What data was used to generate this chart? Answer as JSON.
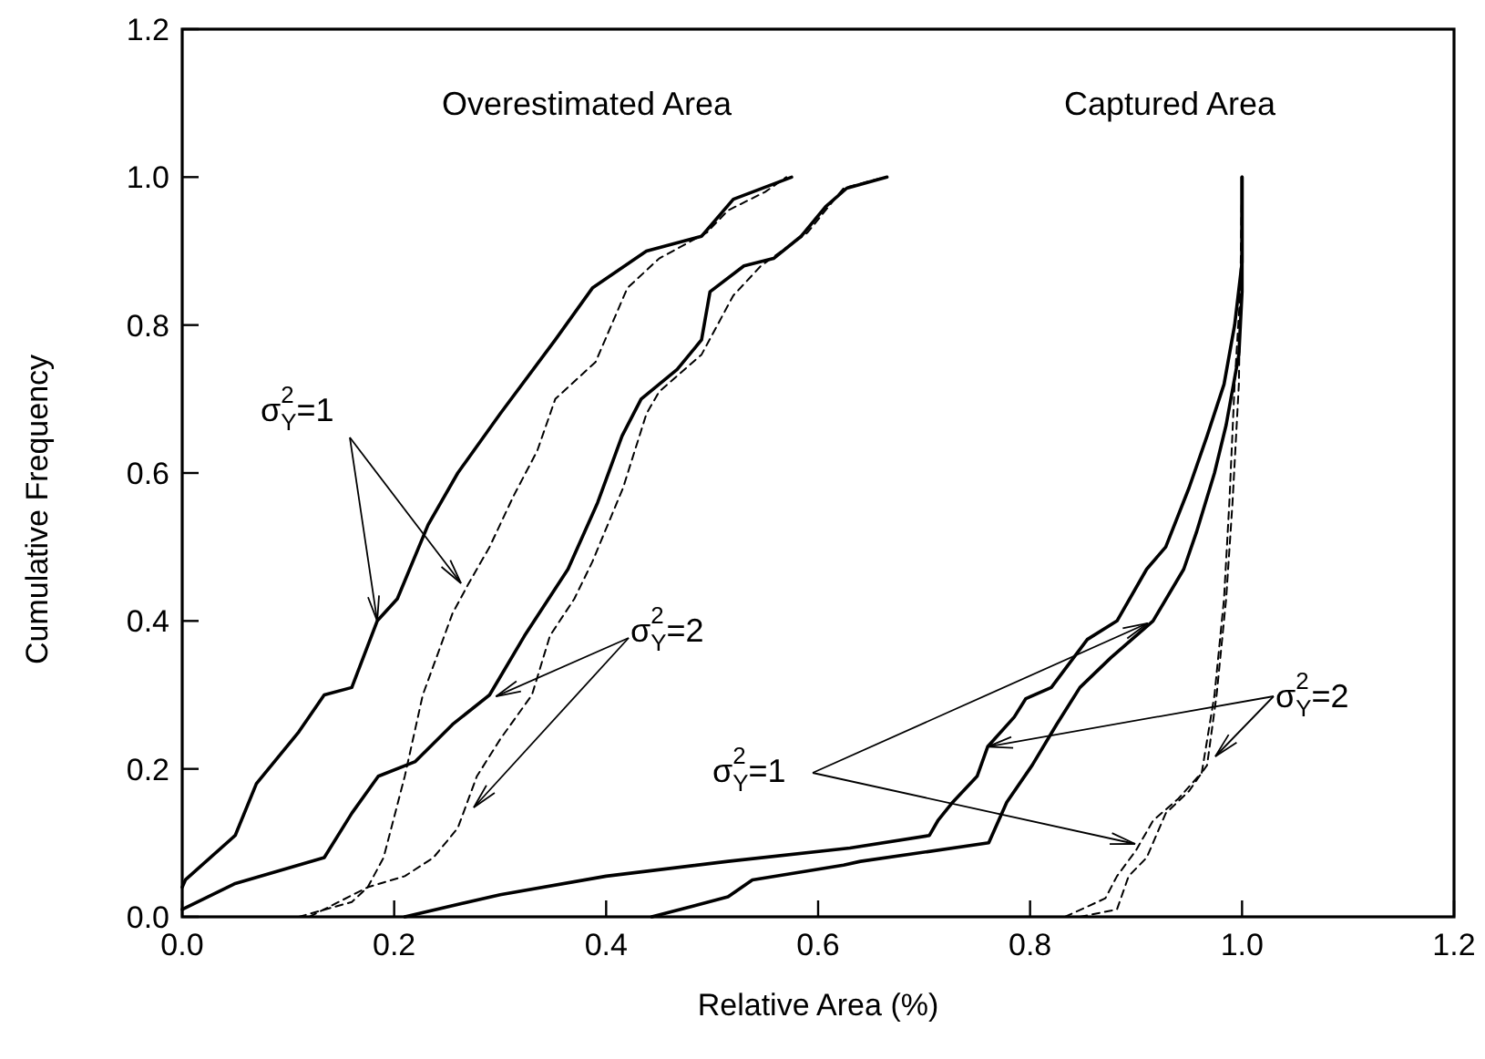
{
  "chart_data": {
    "type": "line",
    "xlabel": "Relative Area (%)",
    "ylabel": "Cumulative Frequency",
    "xlim": [
      0,
      1.2
    ],
    "ylim": [
      0,
      1.2
    ],
    "xticks": [
      {
        "value": 0,
        "label": "0.0"
      },
      0.2,
      0.4,
      0.6,
      0.8,
      {
        "value": 1,
        "label": "1.0"
      },
      1.2
    ],
    "yticks": [
      {
        "value": 0,
        "label": "0.0"
      },
      0.2,
      0.4,
      0.6,
      0.8,
      {
        "value": 1,
        "label": "1.0"
      },
      1.2
    ],
    "grid": false,
    "marker": "none",
    "annotations": [
      "Overestimated Area",
      "Captured Area",
      {
        "text": "σ$^{2}$$_{Y}$=1",
        "x": 0.184,
        "y": 0.4
      },
      {
        "text": "σ$^{2}$$_{Y}$=2",
        "x": 0.296,
        "y": 0.298
      },
      {
        "text": "σ$^{2}$$_{Y}$=1",
        "x": 0.911,
        "y": 0.397
      },
      {
        "text": "σ$^{2}$$_{Y}$=2",
        "x": 0.76,
        "y": 0.23
      }
    ],
    "series": [
      {
        "color": "#000000",
        "line_style": "solid",
        "x": [
          0,
          0.003,
          0.05,
          0.07,
          0.11,
          0.134,
          0.16,
          0.184,
          0.203,
          0.232,
          0.26,
          0.3,
          0.352,
          0.387,
          0.438,
          0.49,
          0.52,
          0.575
        ],
        "values": [
          0.04,
          0.05,
          0.11,
          0.18,
          0.25,
          0.3,
          0.31,
          0.4,
          0.43,
          0.53,
          0.6,
          0.68,
          0.78,
          0.85,
          0.9,
          0.92,
          0.97,
          1.0
        ]
      },
      {
        "color": "#000000",
        "line_style": "dashed",
        "x": [
          0.11,
          0.16,
          0.175,
          0.19,
          0.21,
          0.227,
          0.255,
          0.27,
          0.29,
          0.313,
          0.335,
          0.352,
          0.39,
          0.42,
          0.45,
          0.495,
          0.515,
          0.55,
          0.57
        ],
        "values": [
          0,
          0.02,
          0.04,
          0.08,
          0.19,
          0.3,
          0.41,
          0.45,
          0.5,
          0.57,
          0.63,
          0.7,
          0.75,
          0.85,
          0.89,
          0.925,
          0.955,
          0.98,
          1.0
        ]
      },
      {
        "color": "#000000",
        "line_style": "solid",
        "x": [
          0,
          0.05,
          0.134,
          0.16,
          0.185,
          0.22,
          0.255,
          0.29,
          0.323,
          0.364,
          0.392,
          0.415,
          0.433,
          0.467,
          0.49,
          0.498,
          0.53,
          0.558,
          0.584,
          0.607,
          0.627,
          0.665
        ],
        "values": [
          0.01,
          0.045,
          0.08,
          0.14,
          0.19,
          0.21,
          0.26,
          0.3,
          0.38,
          0.47,
          0.56,
          0.65,
          0.7,
          0.74,
          0.78,
          0.845,
          0.88,
          0.89,
          0.92,
          0.96,
          0.985,
          1.0
        ]
      },
      {
        "color": "#000000",
        "line_style": "dashed",
        "x": [
          0.12,
          0.175,
          0.21,
          0.237,
          0.26,
          0.278,
          0.3,
          0.33,
          0.347,
          0.37,
          0.387,
          0.416,
          0.438,
          0.45,
          0.49,
          0.52,
          0.546,
          0.59,
          0.624,
          0.663
        ],
        "values": [
          0,
          0.04,
          0.055,
          0.08,
          0.12,
          0.19,
          0.24,
          0.3,
          0.38,
          0.43,
          0.48,
          0.58,
          0.68,
          0.71,
          0.76,
          0.84,
          0.88,
          0.925,
          0.985,
          1.0
        ]
      },
      {
        "color": "#000000",
        "line_style": "solid",
        "x": [
          0.21,
          0.3,
          0.4,
          0.515,
          0.63,
          0.705,
          0.713,
          0.727,
          0.75,
          0.76,
          0.785,
          0.796,
          0.82,
          0.854,
          0.882,
          0.91,
          0.928,
          0.95,
          0.967,
          0.983,
          0.993,
          1.0,
          1.0
        ],
        "values": [
          0,
          0.03,
          0.055,
          0.075,
          0.093,
          0.11,
          0.13,
          0.155,
          0.19,
          0.23,
          0.27,
          0.295,
          0.31,
          0.375,
          0.4,
          0.47,
          0.5,
          0.58,
          0.65,
          0.72,
          0.8,
          0.885,
          1.0
        ]
      },
      {
        "color": "#000000",
        "line_style": "solid",
        "x": [
          0.443,
          0.515,
          0.538,
          0.624,
          0.64,
          0.761,
          0.778,
          0.802,
          0.825,
          0.847,
          0.876,
          0.916,
          0.945,
          0.957,
          0.974,
          0.985,
          0.997,
          1.0,
          1.0
        ],
        "values": [
          0,
          0.027,
          0.05,
          0.07,
          0.075,
          0.1,
          0.155,
          0.205,
          0.26,
          0.31,
          0.35,
          0.4,
          0.47,
          0.52,
          0.6,
          0.665,
          0.76,
          0.845,
          1.0
        ]
      },
      {
        "color": "#000000",
        "line_style": "dashed",
        "x": [
          0.833,
          0.871,
          0.882,
          0.9,
          0.916,
          0.94,
          0.962,
          0.974,
          0.983,
          0.988,
          0.993,
          1.0,
          1.0
        ],
        "values": [
          0,
          0.025,
          0.055,
          0.09,
          0.13,
          0.16,
          0.195,
          0.3,
          0.43,
          0.56,
          0.72,
          0.885,
          1.0
        ]
      },
      {
        "color": "#000000",
        "line_style": "dashed",
        "x": [
          0.847,
          0.882,
          0.893,
          0.91,
          0.928,
          0.95,
          0.967,
          0.976,
          0.985,
          0.991,
          0.997,
          1.0
        ],
        "values": [
          0,
          0.01,
          0.055,
          0.08,
          0.14,
          0.17,
          0.205,
          0.3,
          0.43,
          0.56,
          0.72,
          1.0
        ]
      }
    ]
  }
}
